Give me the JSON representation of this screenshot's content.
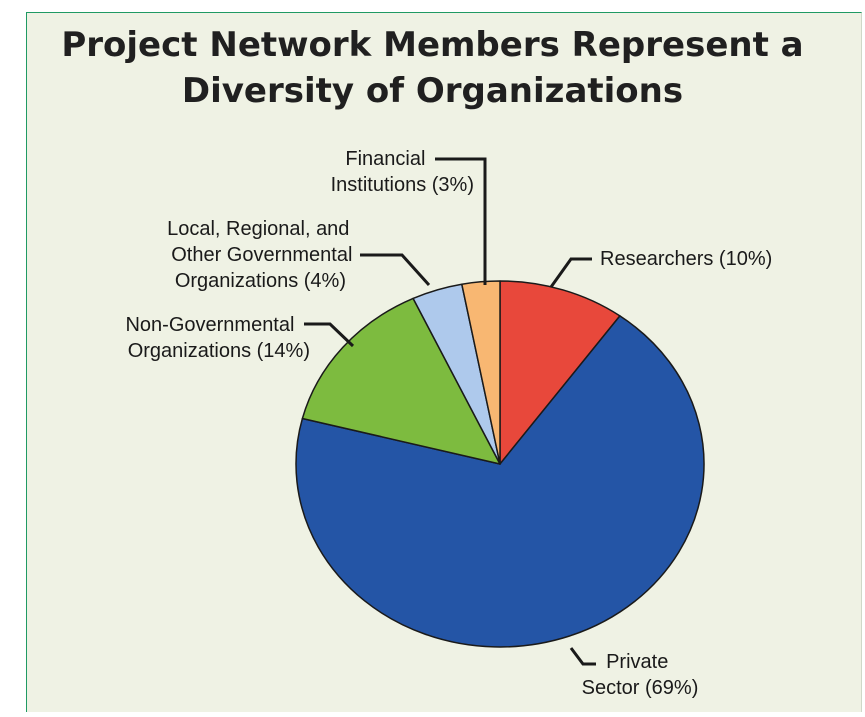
{
  "chart_data": {
    "type": "pie",
    "title_lines": [
      "Project Network Members Represent a",
      "Diversity of Organizations"
    ],
    "slices": [
      {
        "category": "Researchers",
        "value": 10,
        "color": "#e8483b",
        "label_lines": [
          "Researchers  (10%)"
        ]
      },
      {
        "category": "Private Sector",
        "value": 69,
        "color": "#2455a6",
        "label_lines": [
          "Private",
          "Sector (69%)"
        ]
      },
      {
        "category": "Non-Governmental Organizations",
        "value": 14,
        "color": "#7dbb3f",
        "label_lines": [
          "Non-Governmental",
          "Organizations (14%)"
        ]
      },
      {
        "category": "Local, Regional, and Other Governmental Organizations",
        "value": 4,
        "color": "#aec9ec",
        "label_lines": [
          "Local, Regional, and",
          "Other Governmental",
          "Organizations (4%)"
        ]
      },
      {
        "category": "Financial Institutions",
        "value": 3,
        "color": "#f8b772",
        "label_lines": [
          "Financial",
          "Institutions (3%)"
        ]
      }
    ]
  }
}
